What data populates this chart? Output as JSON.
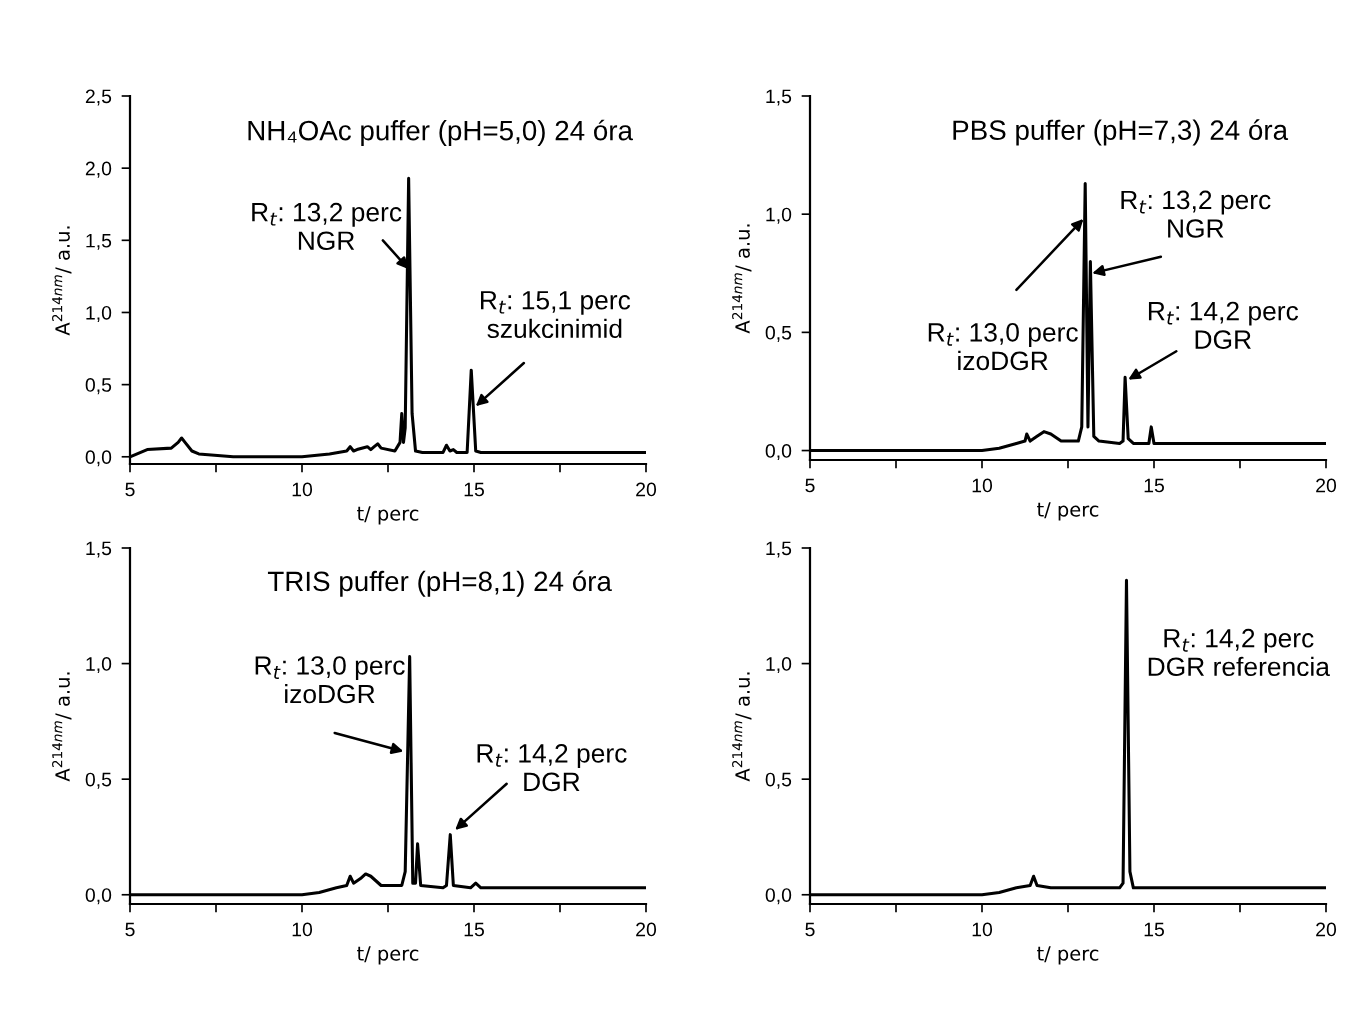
{
  "chart_data": [
    {
      "type": "line",
      "title": "NH₄OAc puffer (pH=5,0) 24 óra",
      "xlabel": "t/ perc",
      "ylabel": "A$^{214nm}$/ a.u.",
      "color": "#000000",
      "x": [
        5.0,
        5.5,
        6.2,
        6.4,
        6.5,
        6.6,
        6.8,
        7.0,
        8.0,
        10.0,
        10.8,
        11.3,
        11.4,
        11.5,
        11.6,
        11.9,
        12.0,
        12.1,
        12.2,
        12.3,
        12.7,
        12.85,
        12.9,
        12.95,
        13.0,
        13.1,
        13.2,
        13.3,
        13.5,
        14.1,
        14.2,
        14.3,
        14.4,
        14.5,
        14.8,
        14.92,
        15.05,
        15.2,
        17.0,
        20.0
      ],
      "values": [
        0.0,
        0.05,
        0.06,
        0.1,
        0.13,
        0.1,
        0.04,
        0.02,
        0.0,
        0.0,
        0.02,
        0.04,
        0.07,
        0.04,
        0.05,
        0.07,
        0.05,
        0.07,
        0.09,
        0.06,
        0.04,
        0.1,
        0.3,
        0.1,
        0.2,
        1.93,
        0.3,
        0.04,
        0.03,
        0.03,
        0.08,
        0.04,
        0.05,
        0.03,
        0.03,
        0.6,
        0.04,
        0.03,
        0.03,
        0.03
      ],
      "xlim": [
        5,
        20
      ],
      "xticks": [
        5,
        {
          "value": 7.5,
          "label": null
        },
        10,
        {
          "value": 12.5,
          "label": null
        },
        15,
        {
          "value": 17.5,
          "label": null
        },
        20
      ],
      "ylim": [
        -0.05,
        2.5
      ],
      "yticks": [
        {
          "value": 0,
          "label": "0,0"
        },
        {
          "value": 0.5,
          "label": "0,5"
        },
        {
          "value": 1.0,
          "label": "1,0"
        },
        {
          "value": 1.5,
          "label": "1,5"
        },
        {
          "value": 2.0,
          "label": "2,0"
        },
        {
          "value": 2.5,
          "label": "2,5"
        }
      ],
      "annotations": [
        {
          "text": "R$_{t}$: 13,2 perc\nNGR",
          "x": 13.1,
          "y": 1.3
        },
        {
          "text": "R$_{t}$: 15,1 perc\nszukcinimid",
          "x": 15.05,
          "y": 0.35
        }
      ]
    },
    {
      "type": "line",
      "title": "PBS puffer (pH=7,3) 24 óra",
      "xlabel": "t/ perc",
      "ylabel": "A$^{214nm}$/ a.u.",
      "color": "#000000",
      "x": [
        5.0,
        10.0,
        10.5,
        11.0,
        11.25,
        11.3,
        11.4,
        11.6,
        11.8,
        12.0,
        12.3,
        12.8,
        12.9,
        13.0,
        13.08,
        13.15,
        13.25,
        13.4,
        14.0,
        14.1,
        14.16,
        14.25,
        14.4,
        14.85,
        14.92,
        15.0,
        16.0,
        20.0
      ],
      "values": [
        0.0,
        0.0,
        0.01,
        0.03,
        0.04,
        0.07,
        0.04,
        0.06,
        0.08,
        0.07,
        0.04,
        0.04,
        0.1,
        1.13,
        0.1,
        0.8,
        0.06,
        0.04,
        0.03,
        0.04,
        0.31,
        0.05,
        0.03,
        0.03,
        0.1,
        0.03,
        0.03,
        0.03
      ],
      "xlim": [
        5,
        20
      ],
      "xticks": [
        5,
        {
          "value": 7.5,
          "label": null
        },
        10,
        {
          "value": 12.5,
          "label": null
        },
        15,
        {
          "value": 17.5,
          "label": null
        },
        20
      ],
      "ylim": [
        -0.04,
        1.5
      ],
      "yticks": [
        {
          "value": 0,
          "label": "0,0"
        },
        {
          "value": 0.5,
          "label": "0,5"
        },
        {
          "value": 1.0,
          "label": "1,0"
        },
        {
          "value": 1.5,
          "label": "1,5"
        }
      ],
      "annotations": [
        {
          "text": "R$_{t}$: 13,0 perc\nizoDGR",
          "x": 12.95,
          "y": 0.98
        },
        {
          "text": "R$_{t}$: 13,2 perc\nNGR",
          "x": 13.2,
          "y": 0.75
        },
        {
          "text": "R$_{t}$: 14,2 perc\nDGR",
          "x": 14.25,
          "y": 0.3
        }
      ]
    },
    {
      "type": "line",
      "title": "TRIS puffer (pH=8,1) 24 óra",
      "xlabel": "t/ perc",
      "ylabel": "A$^{214nm}$/ a.u.",
      "color": "#000000",
      "x": [
        5.0,
        10.0,
        10.5,
        11.0,
        11.3,
        11.4,
        11.5,
        11.7,
        11.85,
        12.0,
        12.3,
        12.9,
        13.0,
        13.13,
        13.22,
        13.3,
        13.36,
        13.45,
        14.1,
        14.2,
        14.31,
        14.4,
        14.9,
        15.05,
        15.2,
        16.0,
        20.0
      ],
      "values": [
        0.0,
        0.0,
        0.01,
        0.03,
        0.04,
        0.08,
        0.05,
        0.07,
        0.09,
        0.08,
        0.04,
        0.04,
        0.1,
        1.03,
        0.05,
        0.05,
        0.22,
        0.04,
        0.03,
        0.04,
        0.26,
        0.04,
        0.03,
        0.05,
        0.03,
        0.03,
        0.03
      ],
      "xlim": [
        5,
        20
      ],
      "xticks": [
        5,
        {
          "value": 7.5,
          "label": null
        },
        10,
        {
          "value": 12.5,
          "label": null
        },
        15,
        {
          "value": 17.5,
          "label": null
        },
        20
      ],
      "ylim": [
        -0.04,
        1.5
      ],
      "yticks": [
        {
          "value": 0,
          "label": "0,0"
        },
        {
          "value": 0.5,
          "label": "0,5"
        },
        {
          "value": 1.0,
          "label": "1,0"
        },
        {
          "value": 1.5,
          "label": "1,5"
        }
      ],
      "annotations": [
        {
          "text": "R$_{t}$: 13,0 perc\nizoDGR",
          "x": 12.95,
          "y": 0.62
        },
        {
          "text": "R$_{t}$: 14,2 perc\nDGR",
          "x": 14.45,
          "y": 0.28
        }
      ]
    },
    {
      "type": "line",
      "xlabel": "t/ perc",
      "ylabel": "A$^{214nm}$/ a.u.",
      "color": "#000000",
      "x": [
        5.0,
        10.0,
        10.5,
        11.0,
        11.4,
        11.5,
        11.6,
        12.0,
        14.0,
        14.1,
        14.2,
        14.3,
        14.4,
        16.0,
        20.0
      ],
      "values": [
        0.0,
        0.0,
        0.01,
        0.03,
        0.04,
        0.08,
        0.04,
        0.03,
        0.03,
        0.05,
        1.36,
        0.1,
        0.03,
        0.03,
        0.03
      ],
      "xlim": [
        5,
        20
      ],
      "xticks": [
        5,
        {
          "value": 7.5,
          "label": null
        },
        10,
        {
          "value": 12.5,
          "label": null
        },
        15,
        {
          "value": 17.5,
          "label": null
        },
        20
      ],
      "ylim": [
        -0.04,
        1.5
      ],
      "yticks": [
        {
          "value": 0,
          "label": "0,0"
        },
        {
          "value": 0.5,
          "label": "0,5"
        },
        {
          "value": 1.0,
          "label": "1,0"
        },
        {
          "value": 1.5,
          "label": "1,5"
        }
      ],
      "annotations": [
        "R$_{t}$: 14,2 perc\nDGR referencia"
      ]
    }
  ]
}
